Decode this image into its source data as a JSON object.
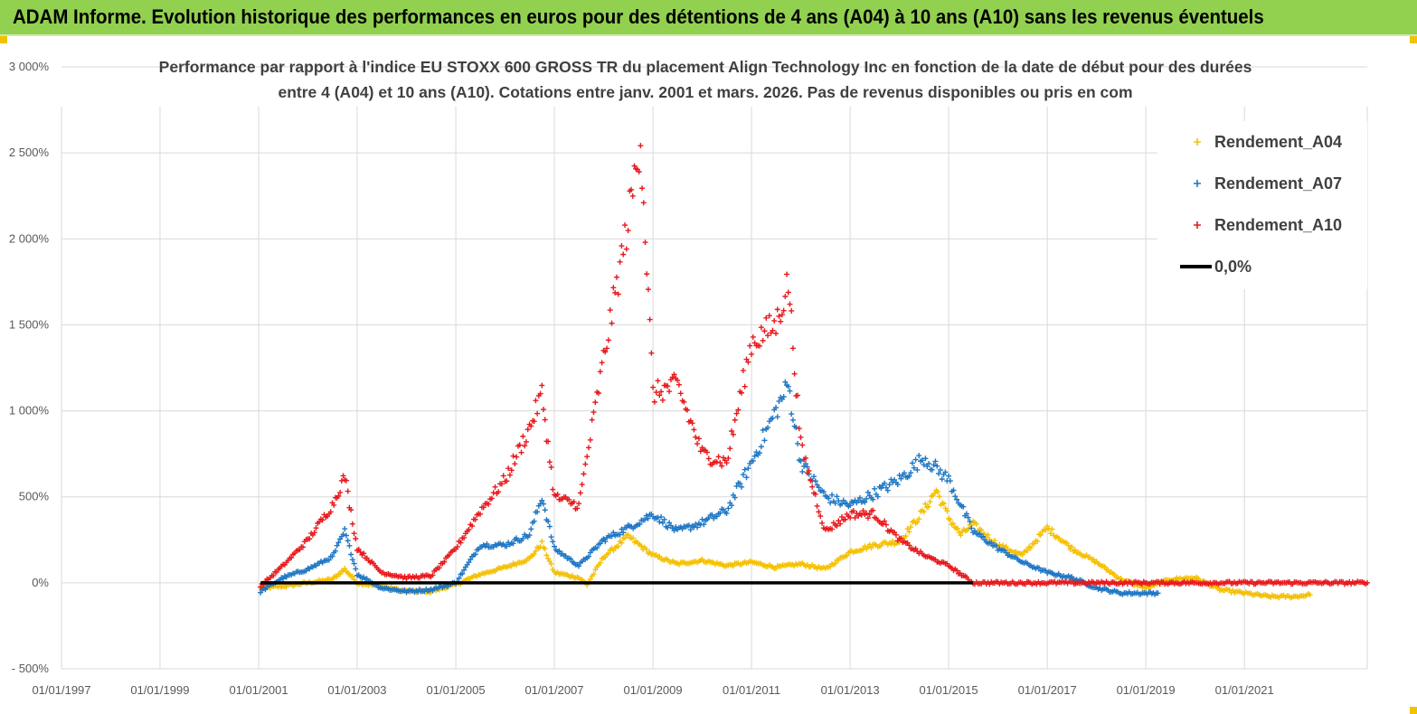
{
  "header": {
    "title": "ADAM Informe. Evolution historique des performances en euros pour des détentions de 4 ans (A04) à 10 ans (A10) sans les revenus éventuels"
  },
  "chart_data": {
    "type": "scatter",
    "title_lines": [
      "Performance par rapport à l'indice EU STOXX 600 GROSS TR  du placement Align Technology Inc en fonction de la date de début pour des durées",
      "entre 4 (A04) et 10 ans (A10). Cotations entre janv. 2001 et mars. 2026. Pas de revenus disponibles ou pris en com"
    ],
    "xlabel": "",
    "ylabel": "",
    "ylim": [
      -500,
      3000
    ],
    "xlim": [
      "1997-01-01",
      "2023-06-30"
    ],
    "y_ticks": [
      -500,
      0,
      500,
      1000,
      1500,
      2000,
      2500,
      3000
    ],
    "y_tick_labels": [
      "- 500%",
      "0%",
      "500%",
      "1 000%",
      "1 500%",
      "2 000%",
      "2 500%",
      "3 000%"
    ],
    "x_ticks": [
      "1997-01-01",
      "1999-01-01",
      "2001-01-01",
      "2003-01-01",
      "2005-01-01",
      "2007-01-01",
      "2009-01-01",
      "2011-01-01",
      "2013-01-01",
      "2015-01-01",
      "2017-01-01",
      "2019-01-01",
      "2021-01-01"
    ],
    "x_tick_labels": [
      "01/01/1997",
      "01/01/1999",
      "01/01/2001",
      "01/01/2003",
      "01/01/2005",
      "01/01/2007",
      "01/01/2009",
      "01/01/2011",
      "01/01/2013",
      "01/01/2015",
      "01/01/2017",
      "01/01/2019",
      "01/01/2021"
    ],
    "grid": {
      "vertical": true,
      "horizontal": true
    },
    "legend_position": "top-right",
    "series": [
      {
        "name": "Rendement_A04",
        "color": "#f5c000",
        "marker": "plus",
        "points": [
          [
            "2001-01-15",
            -30
          ],
          [
            "2001-07-01",
            -20
          ],
          [
            "2002-01-01",
            0
          ],
          [
            "2002-07-01",
            20
          ],
          [
            "2002-10-01",
            80
          ],
          [
            "2003-01-01",
            0
          ],
          [
            "2003-07-01",
            -20
          ],
          [
            "2004-01-01",
            -50
          ],
          [
            "2004-07-01",
            -50
          ],
          [
            "2005-01-01",
            -10
          ],
          [
            "2005-07-01",
            50
          ],
          [
            "2006-01-01",
            90
          ],
          [
            "2006-07-01",
            140
          ],
          [
            "2006-10-01",
            230
          ],
          [
            "2007-01-01",
            60
          ],
          [
            "2007-07-01",
            30
          ],
          [
            "2007-09-01",
            -10
          ],
          [
            "2008-01-01",
            150
          ],
          [
            "2008-07-01",
            270
          ],
          [
            "2009-01-01",
            160
          ],
          [
            "2009-07-01",
            110
          ],
          [
            "2010-01-01",
            130
          ],
          [
            "2010-07-01",
            100
          ],
          [
            "2011-01-01",
            120
          ],
          [
            "2011-07-01",
            90
          ],
          [
            "2012-01-01",
            110
          ],
          [
            "2012-07-01",
            80
          ],
          [
            "2013-01-01",
            180
          ],
          [
            "2013-07-01",
            220
          ],
          [
            "2014-01-01",
            240
          ],
          [
            "2014-07-01",
            420
          ],
          [
            "2014-10-01",
            540
          ],
          [
            "2015-01-01",
            380
          ],
          [
            "2015-04-01",
            280
          ],
          [
            "2015-07-01",
            340
          ],
          [
            "2016-01-01",
            220
          ],
          [
            "2016-07-01",
            160
          ],
          [
            "2017-01-01",
            320
          ],
          [
            "2017-07-01",
            200
          ],
          [
            "2018-01-01",
            120
          ],
          [
            "2018-07-01",
            20
          ],
          [
            "2019-01-01",
            -30
          ],
          [
            "2019-07-01",
            20
          ],
          [
            "2020-01-01",
            30
          ],
          [
            "2020-07-01",
            -40
          ],
          [
            "2021-01-01",
            -60
          ],
          [
            "2021-07-01",
            -80
          ],
          [
            "2022-01-01",
            -80
          ],
          [
            "2022-05-01",
            -70
          ]
        ]
      },
      {
        "name": "Rendement_A07",
        "color": "#1f77c4",
        "marker": "plus",
        "points": [
          [
            "2001-01-15",
            -50
          ],
          [
            "2001-07-01",
            30
          ],
          [
            "2002-01-01",
            80
          ],
          [
            "2002-07-01",
            150
          ],
          [
            "2002-10-01",
            300
          ],
          [
            "2003-01-01",
            50
          ],
          [
            "2003-07-01",
            -30
          ],
          [
            "2004-01-01",
            -50
          ],
          [
            "2004-07-01",
            -40
          ],
          [
            "2005-01-01",
            0
          ],
          [
            "2005-07-01",
            220
          ],
          [
            "2006-01-01",
            220
          ],
          [
            "2006-07-01",
            280
          ],
          [
            "2006-10-01",
            500
          ],
          [
            "2007-01-01",
            200
          ],
          [
            "2007-07-01",
            100
          ],
          [
            "2008-01-01",
            250
          ],
          [
            "2008-07-01",
            320
          ],
          [
            "2009-01-01",
            400
          ],
          [
            "2009-07-01",
            300
          ],
          [
            "2010-01-01",
            350
          ],
          [
            "2010-07-01",
            420
          ],
          [
            "2011-01-01",
            700
          ],
          [
            "2011-07-01",
            1000
          ],
          [
            "2011-10-01",
            1150
          ],
          [
            "2012-01-01",
            700
          ],
          [
            "2012-07-01",
            500
          ],
          [
            "2013-01-01",
            450
          ],
          [
            "2013-07-01",
            520
          ],
          [
            "2014-01-01",
            600
          ],
          [
            "2014-07-01",
            730
          ],
          [
            "2015-01-01",
            600
          ],
          [
            "2015-07-01",
            300
          ],
          [
            "2016-01-01",
            200
          ],
          [
            "2016-07-01",
            120
          ],
          [
            "2017-01-01",
            60
          ],
          [
            "2017-07-01",
            30
          ],
          [
            "2018-01-01",
            -30
          ],
          [
            "2018-07-01",
            -60
          ],
          [
            "2019-01-01",
            -60
          ],
          [
            "2019-04-01",
            -60
          ]
        ]
      },
      {
        "name": "Rendement_A10",
        "color": "#e8191c",
        "marker": "plus",
        "points": [
          [
            "2001-01-15",
            -20
          ],
          [
            "2001-07-01",
            100
          ],
          [
            "2002-01-01",
            250
          ],
          [
            "2002-07-01",
            450
          ],
          [
            "2002-10-01",
            620
          ],
          [
            "2003-01-01",
            200
          ],
          [
            "2003-07-01",
            60
          ],
          [
            "2004-01-01",
            30
          ],
          [
            "2004-07-01",
            40
          ],
          [
            "2005-01-01",
            200
          ],
          [
            "2005-07-01",
            420
          ],
          [
            "2006-01-01",
            600
          ],
          [
            "2006-07-01",
            900
          ],
          [
            "2006-10-01",
            1100
          ],
          [
            "2007-01-01",
            500
          ],
          [
            "2007-07-01",
            450
          ],
          [
            "2008-01-01",
            1300
          ],
          [
            "2008-07-01",
            2100
          ],
          [
            "2008-10-01",
            2600
          ],
          [
            "2009-01-01",
            1100
          ],
          [
            "2009-07-01",
            1150
          ],
          [
            "2010-01-01",
            750
          ],
          [
            "2010-07-01",
            700
          ],
          [
            "2011-01-01",
            1400
          ],
          [
            "2011-07-01",
            1500
          ],
          [
            "2011-10-01",
            1750
          ],
          [
            "2012-01-01",
            800
          ],
          [
            "2012-07-01",
            300
          ],
          [
            "2013-01-01",
            400
          ],
          [
            "2013-07-01",
            400
          ],
          [
            "2014-01-01",
            250
          ],
          [
            "2014-07-01",
            160
          ],
          [
            "2015-01-01",
            100
          ],
          [
            "2015-07-01",
            0
          ],
          [
            "2016-01-01",
            0
          ],
          [
            "2023-06-30",
            0
          ]
        ]
      },
      {
        "name": "0,0%",
        "color": "#000000",
        "marker": "line",
        "points": [
          [
            "2001-01-15",
            0
          ],
          [
            "2015-07-01",
            0
          ]
        ]
      }
    ]
  }
}
